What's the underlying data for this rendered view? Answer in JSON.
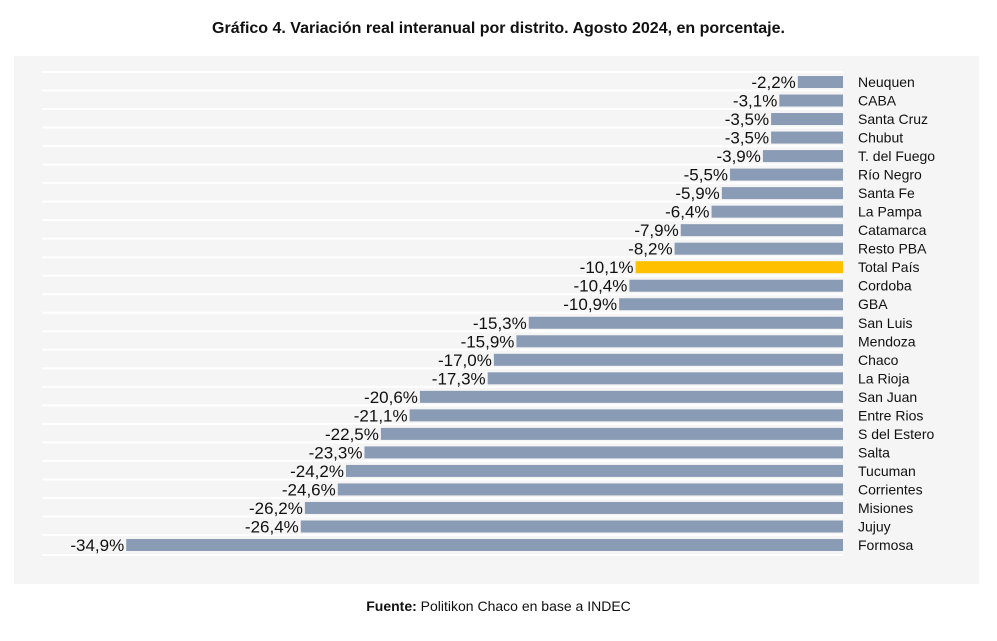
{
  "title": "Gráfico 4. Variación real interanual por distrito. Agosto 2024, en porcentaje.",
  "source": {
    "label": "Fuente:",
    "text": " Politikon Chaco en base a INDEC"
  },
  "colors": {
    "bar": "#8a9bb5",
    "highlight": "#ffc000",
    "grid": "#ffffff",
    "background": "#f5f5f5"
  },
  "chart_data": {
    "type": "bar",
    "orientation": "horizontal",
    "categories": [
      "Neuquen",
      "CABA",
      "Santa Cruz",
      "Chubut",
      "T. del Fuego",
      "Río Negro",
      "Santa Fe",
      "La Pampa",
      "Catamarca",
      "Resto PBA",
      "Total País",
      "Cordoba",
      "GBA",
      "San Luis",
      "Mendoza",
      "Chaco",
      "La Rioja",
      "San Juan",
      "Entre Rios",
      "S del Estero",
      "Salta",
      "Tucuman",
      "Corrientes",
      "Misiones",
      "Jujuy",
      "Formosa"
    ],
    "values": [
      -2.2,
      -3.1,
      -3.5,
      -3.5,
      -3.9,
      -5.5,
      -5.9,
      -6.4,
      -7.9,
      -8.2,
      -10.1,
      -10.4,
      -10.9,
      -15.3,
      -15.9,
      -17.0,
      -17.3,
      -20.6,
      -21.1,
      -22.5,
      -23.3,
      -24.2,
      -24.6,
      -26.2,
      -26.4,
      -34.9
    ],
    "labels": [
      "-2,2%",
      "-3,1%",
      "-3,5%",
      "-3,5%",
      "-3,9%",
      "-5,5%",
      "-5,9%",
      "-6,4%",
      "-7,9%",
      "-8,2%",
      "-10,1%",
      "-10,4%",
      "-10,9%",
      "-15,3%",
      "-15,9%",
      "-17,0%",
      "-17,3%",
      "-20,6%",
      "-21,1%",
      "-22,5%",
      "-23,3%",
      "-24,2%",
      "-24,6%",
      "-26,2%",
      "-26,4%",
      "-34,9%"
    ],
    "highlight_category": "Total País",
    "xlim": [
      -39,
      0
    ],
    "grid": true,
    "legend": false
  }
}
